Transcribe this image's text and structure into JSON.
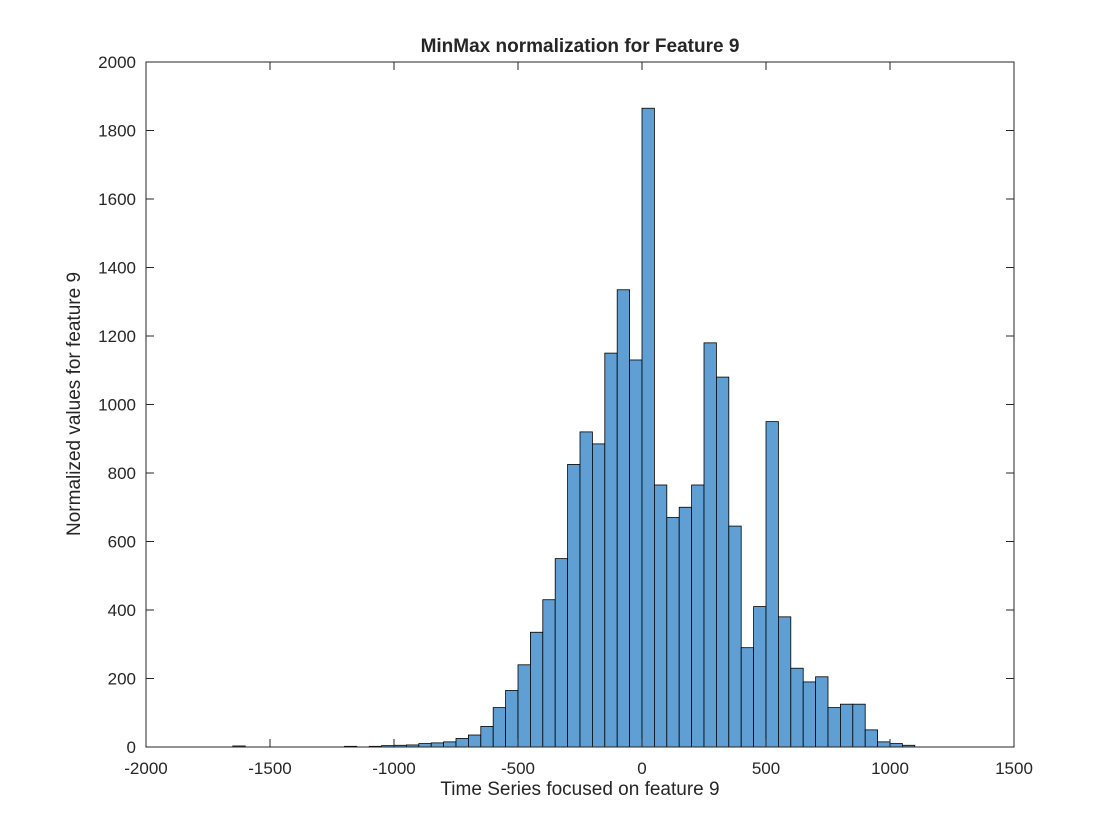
{
  "chart_data": {
    "type": "bar",
    "title": "MinMax normalization for Feature 9",
    "xlabel": "Time Series focused on feature 9",
    "ylabel": "Normalized values for feature 9",
    "xlim": [
      -2000,
      1500
    ],
    "ylim": [
      0,
      2000
    ],
    "xticks": [
      -2000,
      -1500,
      -1000,
      -500,
      0,
      500,
      1000,
      1500
    ],
    "yticks": [
      0,
      200,
      400,
      600,
      800,
      1000,
      1200,
      1400,
      1600,
      1800,
      2000
    ],
    "grid": false,
    "bar_color": "#5f9fd3",
    "edge_color": "#000000",
    "bin_width": 50,
    "bins": [
      {
        "x": -1625,
        "value": 3
      },
      {
        "x": -1175,
        "value": 2
      },
      {
        "x": -1075,
        "value": 2
      },
      {
        "x": -1025,
        "value": 4
      },
      {
        "x": -975,
        "value": 5
      },
      {
        "x": -925,
        "value": 6
      },
      {
        "x": -875,
        "value": 10
      },
      {
        "x": -825,
        "value": 12
      },
      {
        "x": -775,
        "value": 15
      },
      {
        "x": -725,
        "value": 25
      },
      {
        "x": -675,
        "value": 35
      },
      {
        "x": -625,
        "value": 60
      },
      {
        "x": -575,
        "value": 115
      },
      {
        "x": -525,
        "value": 165
      },
      {
        "x": -475,
        "value": 240
      },
      {
        "x": -425,
        "value": 335
      },
      {
        "x": -375,
        "value": 430
      },
      {
        "x": -325,
        "value": 550
      },
      {
        "x": -275,
        "value": 825
      },
      {
        "x": -225,
        "value": 920
      },
      {
        "x": -175,
        "value": 885
      },
      {
        "x": -125,
        "value": 1150
      },
      {
        "x": -75,
        "value": 1335
      },
      {
        "x": -25,
        "value": 1130
      },
      {
        "x": 25,
        "value": 1865
      },
      {
        "x": 75,
        "value": 765
      },
      {
        "x": 125,
        "value": 670
      },
      {
        "x": 175,
        "value": 700
      },
      {
        "x": 225,
        "value": 765
      },
      {
        "x": 275,
        "value": 1180
      },
      {
        "x": 325,
        "value": 1080
      },
      {
        "x": 375,
        "value": 645
      },
      {
        "x": 425,
        "value": 290
      },
      {
        "x": 475,
        "value": 410
      },
      {
        "x": 525,
        "value": 950
      },
      {
        "x": 575,
        "value": 380
      },
      {
        "x": 625,
        "value": 230
      },
      {
        "x": 675,
        "value": 190
      },
      {
        "x": 725,
        "value": 205
      },
      {
        "x": 775,
        "value": 115
      },
      {
        "x": 825,
        "value": 125
      },
      {
        "x": 875,
        "value": 125
      },
      {
        "x": 925,
        "value": 50
      },
      {
        "x": 975,
        "value": 15
      },
      {
        "x": 1025,
        "value": 10
      },
      {
        "x": 1075,
        "value": 5
      }
    ]
  }
}
